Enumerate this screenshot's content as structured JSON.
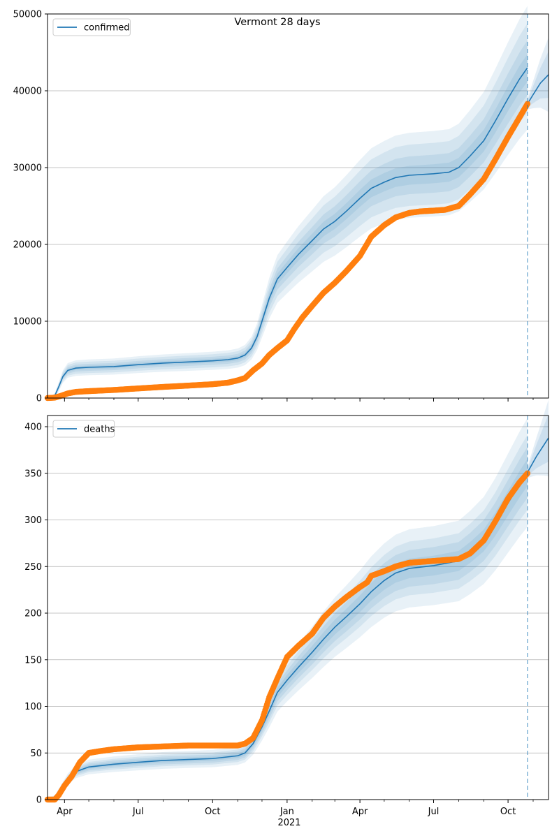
{
  "figure": {
    "title": "Vermont 28 days",
    "year_label": "2021"
  },
  "colors": {
    "model": "#1f77b4",
    "observed": "#ff7f0e",
    "grid": "#b0b0b0",
    "band": "#1f77b4"
  },
  "x_axis": {
    "start": "2020-03-11",
    "end": "2021-11-20",
    "forecast_start": "2021-10-25",
    "tick_labels": [
      {
        "date": "2020-04-01",
        "label": "Apr"
      },
      {
        "date": "2020-07-01",
        "label": "Jul"
      },
      {
        "date": "2020-10-01",
        "label": "Oct"
      },
      {
        "date": "2021-01-01",
        "label": "Jan"
      },
      {
        "date": "2021-04-01",
        "label": "Apr"
      },
      {
        "date": "2021-07-01",
        "label": "Jul"
      },
      {
        "date": "2021-10-01",
        "label": "Oct"
      }
    ],
    "minor_tick_dates": [
      "2020-05-01",
      "2020-06-01",
      "2020-08-01",
      "2020-09-01",
      "2020-11-01",
      "2020-12-01",
      "2021-02-01",
      "2021-03-01",
      "2021-05-01",
      "2021-06-01",
      "2021-08-01",
      "2021-09-01",
      "2021-11-01"
    ]
  },
  "chart_data": [
    {
      "type": "line",
      "legend": {
        "label": "confirmed",
        "position": "top-left"
      },
      "ylim": [
        0,
        50000
      ],
      "yticks": [
        0,
        10000,
        20000,
        30000,
        40000,
        50000
      ],
      "grid": "horizontal",
      "series": [
        {
          "name": "confirmed",
          "role": "model",
          "points": [
            [
              "2020-03-11",
              0
            ],
            [
              "2020-03-16",
              0
            ],
            [
              "2020-03-20",
              300
            ],
            [
              "2020-03-25",
              1500
            ],
            [
              "2020-03-30",
              2800
            ],
            [
              "2020-04-05",
              3600
            ],
            [
              "2020-04-15",
              3900
            ],
            [
              "2020-05-01",
              4000
            ],
            [
              "2020-06-01",
              4100
            ],
            [
              "2020-07-01",
              4350
            ],
            [
              "2020-08-01",
              4550
            ],
            [
              "2020-09-01",
              4700
            ],
            [
              "2020-10-01",
              4850
            ],
            [
              "2020-10-20",
              5000
            ],
            [
              "2020-11-01",
              5200
            ],
            [
              "2020-11-10",
              5600
            ],
            [
              "2020-11-18",
              6500
            ],
            [
              "2020-11-25",
              8000
            ],
            [
              "2020-12-01",
              10000
            ],
            [
              "2020-12-10",
              13000
            ],
            [
              "2020-12-20",
              15500
            ],
            [
              "2021-01-01",
              17000
            ],
            [
              "2021-01-15",
              18700
            ],
            [
              "2021-02-01",
              20500
            ],
            [
              "2021-02-15",
              22000
            ],
            [
              "2021-03-01",
              23000
            ],
            [
              "2021-03-15",
              24300
            ],
            [
              "2021-04-01",
              26000
            ],
            [
              "2021-04-15",
              27300
            ],
            [
              "2021-05-01",
              28100
            ],
            [
              "2021-05-15",
              28700
            ],
            [
              "2021-06-01",
              29000
            ],
            [
              "2021-07-01",
              29200
            ],
            [
              "2021-07-20",
              29400
            ],
            [
              "2021-08-01",
              30000
            ],
            [
              "2021-08-15",
              31500
            ],
            [
              "2021-09-01",
              33500
            ],
            [
              "2021-09-15",
              36000
            ],
            [
              "2021-10-01",
              39000
            ],
            [
              "2021-10-15",
              41500
            ],
            [
              "2021-10-25",
              43000
            ]
          ]
        },
        {
          "name": "confirmed forecast",
          "role": "forecast",
          "points": [
            [
              "2021-10-25",
              38300
            ],
            [
              "2021-11-01",
              39500
            ],
            [
              "2021-11-10",
              41000
            ],
            [
              "2021-11-20",
              42100
            ]
          ]
        },
        {
          "name": "confirmed observed",
          "role": "observed",
          "points": [
            [
              "2020-03-11",
              0
            ],
            [
              "2020-03-20",
              50
            ],
            [
              "2020-03-28",
              300
            ],
            [
              "2020-04-05",
              600
            ],
            [
              "2020-04-15",
              800
            ],
            [
              "2020-05-01",
              900
            ],
            [
              "2020-06-01",
              1050
            ],
            [
              "2020-07-01",
              1250
            ],
            [
              "2020-08-01",
              1450
            ],
            [
              "2020-09-01",
              1620
            ],
            [
              "2020-10-01",
              1800
            ],
            [
              "2020-10-20",
              2000
            ],
            [
              "2020-11-01",
              2300
            ],
            [
              "2020-11-10",
              2600
            ],
            [
              "2020-11-20",
              3600
            ],
            [
              "2020-12-01",
              4500
            ],
            [
              "2020-12-10",
              5600
            ],
            [
              "2020-12-20",
              6500
            ],
            [
              "2021-01-01",
              7500
            ],
            [
              "2021-01-10",
              9000
            ],
            [
              "2021-01-20",
              10500
            ],
            [
              "2021-02-01",
              12000
            ],
            [
              "2021-02-15",
              13700
            ],
            [
              "2021-03-01",
              15000
            ],
            [
              "2021-03-15",
              16500
            ],
            [
              "2021-04-01",
              18500
            ],
            [
              "2021-04-15",
              21000
            ],
            [
              "2021-05-01",
              22500
            ],
            [
              "2021-05-15",
              23500
            ],
            [
              "2021-06-01",
              24100
            ],
            [
              "2021-06-15",
              24300
            ],
            [
              "2021-07-01",
              24400
            ],
            [
              "2021-07-15",
              24500
            ],
            [
              "2021-08-01",
              25000
            ],
            [
              "2021-08-15",
              26500
            ],
            [
              "2021-09-01",
              28500
            ],
            [
              "2021-09-15",
              31000
            ],
            [
              "2021-10-01",
              34000
            ],
            [
              "2021-10-15",
              36500
            ],
            [
              "2021-10-25",
              38300
            ]
          ]
        }
      ]
    },
    {
      "type": "line",
      "legend": {
        "label": "deaths",
        "position": "top-left"
      },
      "ylim": [
        0,
        412
      ],
      "yticks": [
        0,
        50,
        100,
        150,
        200,
        250,
        300,
        350,
        400
      ],
      "grid": "horizontal",
      "series": [
        {
          "name": "deaths",
          "role": "model",
          "points": [
            [
              "2020-03-11",
              0
            ],
            [
              "2020-03-20",
              2
            ],
            [
              "2020-03-28",
              12
            ],
            [
              "2020-04-05",
              22
            ],
            [
              "2020-04-15",
              30
            ],
            [
              "2020-05-01",
              35
            ],
            [
              "2020-06-01",
              38
            ],
            [
              "2020-07-01",
              40
            ],
            [
              "2020-08-01",
              42
            ],
            [
              "2020-09-01",
              43
            ],
            [
              "2020-10-01",
              44
            ],
            [
              "2020-11-01",
              47
            ],
            [
              "2020-11-10",
              50
            ],
            [
              "2020-11-20",
              60
            ],
            [
              "2020-12-01",
              78
            ],
            [
              "2020-12-10",
              95
            ],
            [
              "2020-12-20",
              115
            ],
            [
              "2021-01-01",
              128
            ],
            [
              "2021-01-15",
              142
            ],
            [
              "2021-02-01",
              158
            ],
            [
              "2021-02-15",
              172
            ],
            [
              "2021-03-01",
              185
            ],
            [
              "2021-03-15",
              196
            ],
            [
              "2021-04-01",
              210
            ],
            [
              "2021-04-15",
              223
            ],
            [
              "2021-05-01",
              235
            ],
            [
              "2021-05-15",
              243
            ],
            [
              "2021-06-01",
              248
            ],
            [
              "2021-07-01",
              251
            ],
            [
              "2021-08-01",
              256
            ],
            [
              "2021-08-15",
              265
            ],
            [
              "2021-09-01",
              278
            ],
            [
              "2021-09-15",
              295
            ],
            [
              "2021-10-01",
              318
            ],
            [
              "2021-10-15",
              338
            ],
            [
              "2021-10-25",
              351
            ]
          ]
        },
        {
          "name": "deaths forecast",
          "role": "forecast",
          "points": [
            [
              "2021-10-25",
              351
            ],
            [
              "2021-11-05",
              368
            ],
            [
              "2021-11-20",
              388
            ]
          ]
        },
        {
          "name": "deaths observed",
          "role": "observed",
          "points": [
            [
              "2020-03-11",
              0
            ],
            [
              "2020-03-20",
              0
            ],
            [
              "2020-03-25",
              5
            ],
            [
              "2020-04-01",
              15
            ],
            [
              "2020-04-10",
              25
            ],
            [
              "2020-04-20",
              40
            ],
            [
              "2020-05-01",
              50
            ],
            [
              "2020-05-15",
              52
            ],
            [
              "2020-06-01",
              54
            ],
            [
              "2020-07-01",
              56
            ],
            [
              "2020-08-01",
              57
            ],
            [
              "2020-09-01",
              58
            ],
            [
              "2020-10-01",
              58
            ],
            [
              "2020-11-01",
              58
            ],
            [
              "2020-11-10",
              60
            ],
            [
              "2020-11-20",
              66
            ],
            [
              "2020-12-01",
              85
            ],
            [
              "2020-12-10",
              110
            ],
            [
              "2020-12-20",
              130
            ],
            [
              "2021-01-01",
              153
            ],
            [
              "2021-01-15",
              165
            ],
            [
              "2021-02-01",
              178
            ],
            [
              "2021-02-15",
              195
            ],
            [
              "2021-03-01",
              207
            ],
            [
              "2021-03-15",
              217
            ],
            [
              "2021-04-01",
              228
            ],
            [
              "2021-04-10",
              233
            ],
            [
              "2021-04-15",
              240
            ],
            [
              "2021-05-01",
              245
            ],
            [
              "2021-05-15",
              250
            ],
            [
              "2021-06-01",
              254
            ],
            [
              "2021-07-01",
              256
            ],
            [
              "2021-08-01",
              258
            ],
            [
              "2021-08-15",
              264
            ],
            [
              "2021-09-01",
              278
            ],
            [
              "2021-09-15",
              298
            ],
            [
              "2021-10-01",
              323
            ],
            [
              "2021-10-15",
              340
            ],
            [
              "2021-10-25",
              350
            ]
          ]
        }
      ]
    }
  ]
}
